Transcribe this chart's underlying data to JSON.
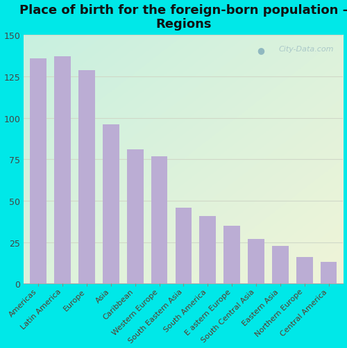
{
  "title": "Place of birth for the foreign-born population -\nRegions",
  "categories": [
    "Americas",
    "Latin America",
    "Europe",
    "Asia",
    "Caribbean",
    "Western Europe",
    "South Eastern Asia",
    "South America",
    "E astern Europe",
    "South Central Asia",
    "Eastern Asia",
    "Northern Europe",
    "Central America"
  ],
  "values": [
    136,
    137,
    129,
    96,
    81,
    77,
    46,
    41,
    35,
    27,
    23,
    16,
    13
  ],
  "bar_color": "#bbadd4",
  "background_outer": "#00e8e8",
  "gradient_top_left": "#c8f0e0",
  "gradient_bottom_right": "#f0f4d8",
  "ylim": [
    0,
    150
  ],
  "grid_color": "#d0d8c8",
  "title_fontsize": 13,
  "tick_label_fontsize": 8,
  "ytick_fontsize": 9,
  "watermark_text": "City-Data.com",
  "title_color": "#111111",
  "tick_label_color": "#5a3a2a"
}
